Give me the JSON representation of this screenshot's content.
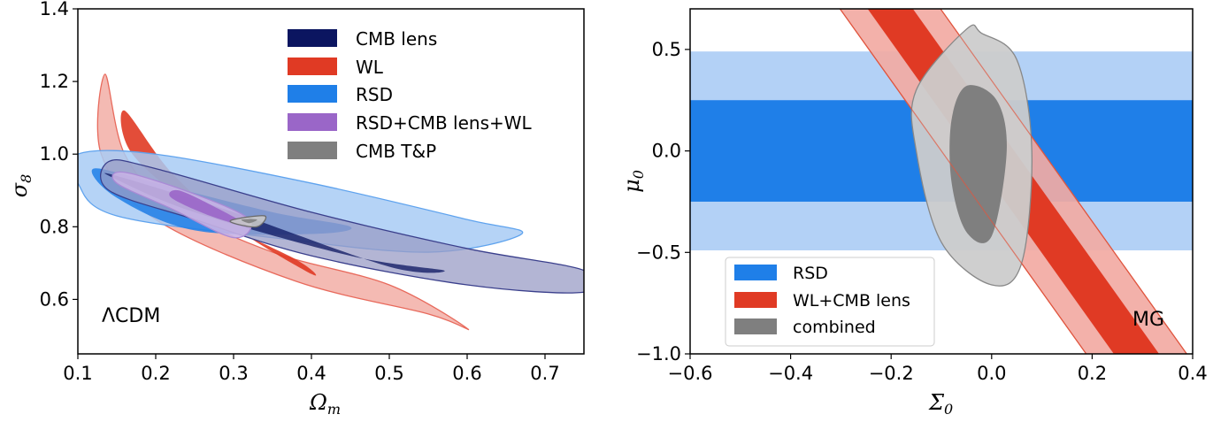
{
  "chart_data": [
    {
      "type": "contour",
      "panel": "left",
      "xlabel": "Ω_m",
      "ylabel": "σ_8",
      "xlim": [
        0.1,
        0.75
      ],
      "ylim": [
        0.45,
        1.4
      ],
      "xticks": [
        "0.1",
        "0.2",
        "0.3",
        "0.4",
        "0.5",
        "0.6",
        "0.7"
      ],
      "yticks": [
        "0.6",
        "0.8",
        "1.0",
        "1.2",
        "1.4"
      ],
      "annotation": "ΛCDM",
      "legend_position": "top-center",
      "colors": {
        "cmb_lens": "#0b1560",
        "wl": "#e03a24",
        "rsd": "#1f7fe8",
        "combined": "#9a66c8",
        "cmb_tp": "#7f7f7f"
      },
      "series": [
        {
          "name": "CMB lens",
          "inner": [
            [
              0.15,
              0.94
            ],
            [
              0.3,
              0.84
            ],
            [
              0.5,
              0.69
            ],
            [
              0.57,
              0.68
            ],
            [
              0.45,
              0.72
            ],
            [
              0.25,
              0.84
            ],
            [
              0.15,
              0.93
            ]
          ],
          "outer": [
            [
              0.14,
              0.98
            ],
            [
              0.2,
              0.96
            ],
            [
              0.4,
              0.84
            ],
            [
              0.6,
              0.74
            ],
            [
              0.75,
              0.68
            ],
            [
              0.75,
              0.62
            ],
            [
              0.6,
              0.64
            ],
            [
              0.4,
              0.72
            ],
            [
              0.25,
              0.82
            ],
            [
              0.14,
              0.9
            ]
          ]
        },
        {
          "name": "WL",
          "inner": [
            [
              0.16,
              1.12
            ],
            [
              0.22,
              0.95
            ],
            [
              0.3,
              0.8
            ],
            [
              0.4,
              0.67
            ],
            [
              0.38,
              0.71
            ],
            [
              0.26,
              0.84
            ],
            [
              0.17,
              1.0
            ]
          ],
          "outer": [
            [
              0.135,
              1.22
            ],
            [
              0.16,
              1.0
            ],
            [
              0.22,
              0.86
            ],
            [
              0.35,
              0.73
            ],
            [
              0.5,
              0.64
            ],
            [
              0.6,
              0.52
            ],
            [
              0.55,
              0.56
            ],
            [
              0.38,
              0.65
            ],
            [
              0.2,
              0.82
            ],
            [
              0.13,
              1.0
            ]
          ]
        },
        {
          "name": "RSD",
          "inner": [
            [
              0.12,
              0.96
            ],
            [
              0.2,
              0.92
            ],
            [
              0.35,
              0.84
            ],
            [
              0.45,
              0.8
            ],
            [
              0.4,
              0.78
            ],
            [
              0.25,
              0.79
            ],
            [
              0.15,
              0.88
            ]
          ],
          "outer": [
            [
              0.1,
              1.0
            ],
            [
              0.2,
              1.0
            ],
            [
              0.4,
              0.92
            ],
            [
              0.6,
              0.82
            ],
            [
              0.67,
              0.78
            ],
            [
              0.55,
              0.73
            ],
            [
              0.35,
              0.77
            ],
            [
              0.15,
              0.83
            ],
            [
              0.1,
              0.92
            ]
          ]
        },
        {
          "name": "RSD+CMB lens+WL",
          "inner": [
            [
              0.23,
              0.9
            ],
            [
              0.28,
              0.85
            ],
            [
              0.32,
              0.8
            ],
            [
              0.27,
              0.83
            ],
            [
              0.22,
              0.88
            ]
          ],
          "outer": [
            [
              0.16,
              0.95
            ],
            [
              0.25,
              0.89
            ],
            [
              0.32,
              0.82
            ],
            [
              0.3,
              0.77
            ],
            [
              0.22,
              0.85
            ],
            [
              0.15,
              0.92
            ]
          ]
        },
        {
          "name": "CMB T&P",
          "inner": [
            [
              0.31,
              0.82
            ],
            [
              0.33,
              0.82
            ],
            [
              0.32,
              0.81
            ]
          ],
          "outer": [
            [
              0.3,
              0.82
            ],
            [
              0.34,
              0.83
            ],
            [
              0.33,
              0.8
            ],
            [
              0.3,
              0.81
            ]
          ]
        }
      ]
    },
    {
      "type": "contour",
      "panel": "right",
      "xlabel": "Σ_0",
      "ylabel": "μ_0",
      "xlim": [
        -0.6,
        0.4
      ],
      "ylim": [
        -1.0,
        0.7
      ],
      "xticks": [
        "−0.6",
        "−0.4",
        "−0.2",
        "0.0",
        "0.2",
        "0.4"
      ],
      "yticks": [
        "−1.0",
        "−0.5",
        "0.0",
        "0.5"
      ],
      "annotation": "MG",
      "legend_position": "lower-left",
      "colors": {
        "rsd": "#1f7fe8",
        "wl_cmb": "#e03a24",
        "combined": "#7f7f7f"
      },
      "series": [
        {
          "name": "RSD",
          "band_1sigma": [
            -0.25,
            0.25
          ],
          "band_2sigma": [
            -0.49,
            0.49
          ]
        },
        {
          "name": "WL+CMB lens",
          "slope": -3.47,
          "center": [
            0.0,
            0.0
          ],
          "half_width_1sigma": 0.045,
          "half_width_2sigma": 0.1
        },
        {
          "name": "combined",
          "inner": [
            [
              -0.05,
              0.32
            ],
            [
              0.01,
              0.25
            ],
            [
              0.03,
              0.0
            ],
            [
              0.0,
              -0.42
            ],
            [
              -0.05,
              -0.4
            ],
            [
              -0.08,
              -0.15
            ],
            [
              -0.08,
              0.15
            ]
          ],
          "outer": [
            [
              -0.05,
              0.6
            ],
            [
              -0.02,
              0.58
            ],
            [
              0.05,
              0.45
            ],
            [
              0.08,
              0.0
            ],
            [
              0.06,
              -0.55
            ],
            [
              0.0,
              -0.66
            ],
            [
              -0.1,
              -0.45
            ],
            [
              -0.15,
              0.0
            ],
            [
              -0.15,
              0.3
            ]
          ]
        }
      ],
      "legend": [
        "RSD",
        "WL+CMB lens",
        "combined"
      ]
    }
  ]
}
